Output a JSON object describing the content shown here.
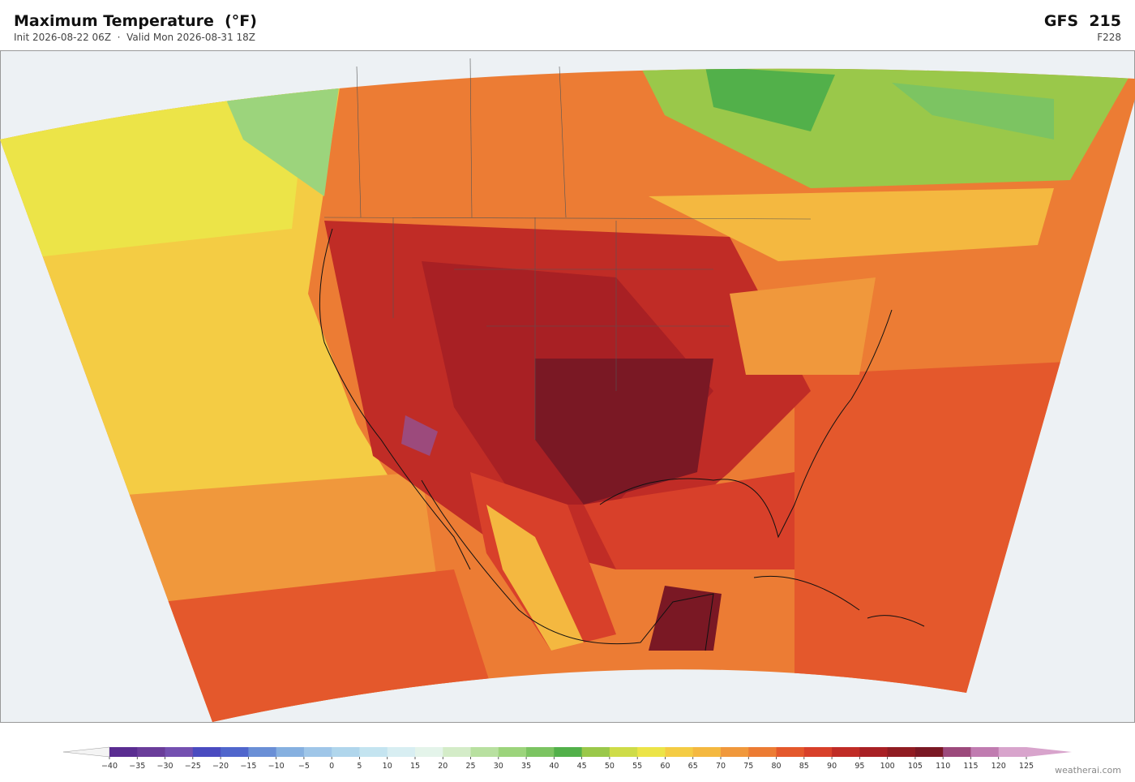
{
  "header": {
    "title": "Maximum Temperature  (°F)",
    "subtitle": "Init 2026-08-22 06Z  ·  Valid Mon 2026-08-31 18Z",
    "model": "GFS  215",
    "forecast_hour": "F228"
  },
  "colorbar": {
    "ticks": [
      {
        "value": -40,
        "label": "−40"
      },
      {
        "value": -35,
        "label": "−35"
      },
      {
        "value": -30,
        "label": "−30"
      },
      {
        "value": -25,
        "label": "−25"
      },
      {
        "value": -20,
        "label": "−20"
      },
      {
        "value": -15,
        "label": "−15"
      },
      {
        "value": -10,
        "label": "−10"
      },
      {
        "value": -5,
        "label": "−5"
      },
      0,
      5,
      10,
      15,
      20,
      25,
      30,
      35,
      40,
      45,
      50,
      55,
      60,
      65,
      70,
      75,
      80,
      85,
      90,
      95,
      100,
      105,
      110,
      115,
      120,
      125
    ],
    "colors": [
      "#5a2d91",
      "#6a3d9a",
      "#7450b0",
      "#4a4bc0",
      "#5066cc",
      "#6a8fd6",
      "#86b0e0",
      "#9fc6e8",
      "#b0d6ec",
      "#c4e4f0",
      "#d8eef2",
      "#e4f4ea",
      "#d4ecc8",
      "#b8e0a0",
      "#9cd47c",
      "#7cc462",
      "#52b04a",
      "#9ac84a",
      "#cedc48",
      "#ece448",
      "#f4cc44",
      "#f4b840",
      "#f0983c",
      "#ec7c34",
      "#e4582c",
      "#d8402a",
      "#c02c26",
      "#a82024",
      "#901c22",
      "#7a1824",
      "#9c4a7c",
      "#c07cb0",
      "#d8a4cc"
    ],
    "under_color": "#f4f4f4",
    "over_color": "#d8a4cc"
  },
  "footer": {
    "credit": "weatherai.com"
  }
}
